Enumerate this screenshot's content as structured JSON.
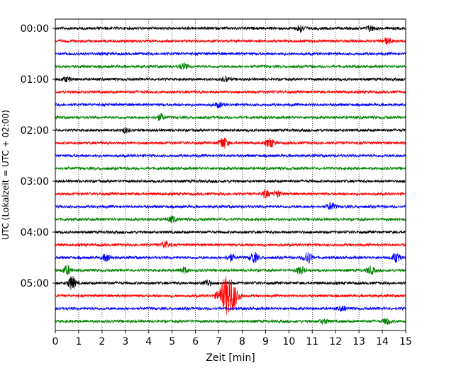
{
  "chart_data": {
    "type": "line",
    "title": "",
    "xlabel": "Zeit  [min]",
    "ylabel": "UTC (Lokalzeit = UTC + 02:00)",
    "xlim": [
      0,
      15
    ],
    "x_ticks": [
      "0",
      "1",
      "2",
      "3",
      "4",
      "5",
      "6",
      "7",
      "8",
      "9",
      "10",
      "11",
      "12",
      "13",
      "14",
      "15"
    ],
    "y_tick_labels": [
      "00:00",
      "01:00",
      "02:00",
      "03:00",
      "04:00",
      "05:00"
    ],
    "trace_interval_minutes": 15,
    "trace_colors": [
      "#000000",
      "#ff0000",
      "#0000ff",
      "#008000"
    ],
    "grid": "vertical dotted",
    "traces": [
      {
        "start": "00:00",
        "color": "#000000",
        "events": [
          {
            "t": 10.5,
            "amp": 5
          },
          {
            "t": 13.5,
            "amp": 4
          }
        ]
      },
      {
        "start": "00:15",
        "color": "#ff0000",
        "events": [
          {
            "t": 14.2,
            "amp": 4
          }
        ]
      },
      {
        "start": "00:30",
        "color": "#0000ff",
        "events": []
      },
      {
        "start": "00:45",
        "color": "#008000",
        "events": [
          {
            "t": 5.5,
            "amp": 4
          }
        ]
      },
      {
        "start": "01:00",
        "color": "#000000",
        "events": [
          {
            "t": 0.5,
            "amp": 3
          },
          {
            "t": 7.3,
            "amp": 3
          }
        ]
      },
      {
        "start": "01:15",
        "color": "#ff0000",
        "events": []
      },
      {
        "start": "01:30",
        "color": "#0000ff",
        "events": [
          {
            "t": 7.0,
            "amp": 3
          }
        ]
      },
      {
        "start": "01:45",
        "color": "#008000",
        "events": [
          {
            "t": 4.5,
            "amp": 4
          }
        ]
      },
      {
        "start": "02:00",
        "color": "#000000",
        "events": [
          {
            "t": 3.0,
            "amp": 3
          }
        ]
      },
      {
        "start": "02:15",
        "color": "#ff0000",
        "events": [
          {
            "t": 7.2,
            "amp": 8
          },
          {
            "t": 9.2,
            "amp": 6
          }
        ]
      },
      {
        "start": "02:30",
        "color": "#0000ff",
        "events": []
      },
      {
        "start": "02:45",
        "color": "#008000",
        "events": []
      },
      {
        "start": "03:00",
        "color": "#000000",
        "events": []
      },
      {
        "start": "03:15",
        "color": "#ff0000",
        "events": [
          {
            "t": 9.0,
            "amp": 5
          },
          {
            "t": 9.5,
            "amp": 4
          }
        ]
      },
      {
        "start": "03:30",
        "color": "#0000ff",
        "events": [
          {
            "t": 11.8,
            "amp": 5
          }
        ]
      },
      {
        "start": "03:45",
        "color": "#008000",
        "events": [
          {
            "t": 5.0,
            "amp": 4
          }
        ]
      },
      {
        "start": "04:00",
        "color": "#000000",
        "events": []
      },
      {
        "start": "04:15",
        "color": "#ff0000",
        "events": [
          {
            "t": 4.7,
            "amp": 5
          }
        ]
      },
      {
        "start": "04:30",
        "color": "#0000ff",
        "events": [
          {
            "t": 2.2,
            "amp": 5
          },
          {
            "t": 7.5,
            "amp": 5
          },
          {
            "t": 8.5,
            "amp": 7
          },
          {
            "t": 10.8,
            "amp": 8
          },
          {
            "t": 14.6,
            "amp": 6
          }
        ]
      },
      {
        "start": "04:45",
        "color": "#008000",
        "events": [
          {
            "t": 0.5,
            "amp": 6
          },
          {
            "t": 5.5,
            "amp": 4
          },
          {
            "t": 10.5,
            "amp": 5
          },
          {
            "t": 13.5,
            "amp": 5
          }
        ]
      },
      {
        "start": "05:00",
        "color": "#000000",
        "events": [
          {
            "t": 0.7,
            "amp": 9
          },
          {
            "t": 6.5,
            "amp": 4
          }
        ]
      },
      {
        "start": "05:15",
        "color": "#ff0000",
        "events": [
          {
            "t": 7.4,
            "amp": 28
          }
        ]
      },
      {
        "start": "05:30",
        "color": "#0000ff",
        "events": [
          {
            "t": 12.3,
            "amp": 3
          }
        ]
      },
      {
        "start": "05:45",
        "color": "#008000",
        "events": [
          {
            "t": 11.5,
            "amp": 3
          },
          {
            "t": 14.2,
            "amp": 4
          }
        ]
      }
    ]
  }
}
